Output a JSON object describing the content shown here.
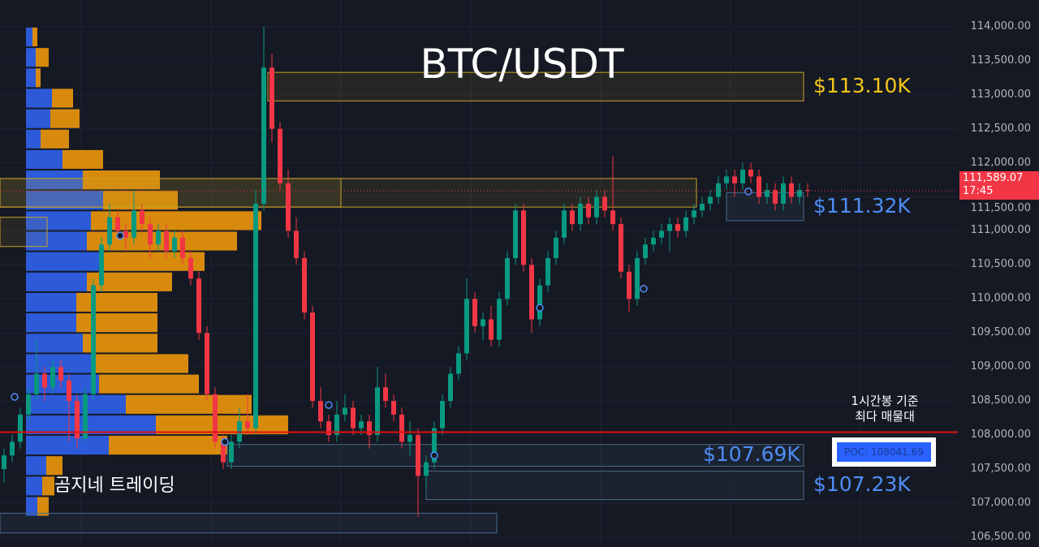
{
  "chart_data": {
    "type": "candlestick",
    "title": "BTC/USDT",
    "ylim": [
      106400,
      114400
    ],
    "y_ticks": [
      "114,000.00",
      "113,500.00",
      "113,000.00",
      "112,500.00",
      "112,000.00",
      "111,500.00",
      "111,000.00",
      "110,500.00",
      "110,000.00",
      "109,500.00",
      "109,000.00",
      "108,500.00",
      "108,000.00",
      "107,500.00",
      "107,000.00",
      "106,500.00"
    ],
    "y_tick_values": [
      114000,
      113500,
      113000,
      112500,
      112000,
      111500,
      111000,
      110500,
      110000,
      109500,
      109000,
      108500,
      108000,
      107500,
      107000,
      106500
    ],
    "grid": true,
    "colors": {
      "up": "#089981",
      "down": "#f23645",
      "background": "#151924",
      "profile_up": "#2c5ad8",
      "profile_down": "#d88a0c",
      "zone_yellow": "#c9a227",
      "zone_blue": "#4a6a8a",
      "poc_line": "#e01010"
    },
    "candles_ohlc": [
      [
        107500,
        107800,
        107300,
        107700
      ],
      [
        107700,
        108000,
        107600,
        107900
      ],
      [
        107900,
        108400,
        107800,
        108300
      ],
      [
        108300,
        108700,
        108200,
        108600
      ],
      [
        108600,
        109400,
        108500,
        108900
      ],
      [
        108900,
        109000,
        108500,
        108700
      ],
      [
        108700,
        109100,
        108600,
        109000
      ],
      [
        109000,
        109100,
        108700,
        108800
      ],
      [
        108800,
        108900,
        107900,
        108500
      ],
      [
        108500,
        108600,
        107800,
        107950
      ],
      [
        107950,
        108700,
        107900,
        108600
      ],
      [
        108600,
        110300,
        108500,
        110200
      ],
      [
        110200,
        110900,
        110100,
        110800
      ],
      [
        110800,
        111400,
        110700,
        111200
      ],
      [
        111200,
        111300,
        110900,
        111000
      ],
      [
        111000,
        111100,
        110700,
        110900
      ],
      [
        110900,
        111600,
        110800,
        111300
      ],
      [
        111300,
        111400,
        111000,
        111100
      ],
      [
        111100,
        111200,
        110600,
        110800
      ],
      [
        110800,
        111100,
        110700,
        111000
      ],
      [
        111000,
        111100,
        110600,
        110700
      ],
      [
        110700,
        111000,
        110600,
        110900
      ],
      [
        110900,
        111000,
        110500,
        110600
      ],
      [
        110600,
        110700,
        110200,
        110300
      ],
      [
        110300,
        110400,
        109400,
        109500
      ],
      [
        109500,
        109600,
        108500,
        108600
      ],
      [
        108600,
        108700,
        107800,
        107900
      ],
      [
        107900,
        108000,
        107500,
        107600
      ],
      [
        107600,
        108000,
        107500,
        107900
      ],
      [
        107900,
        108400,
        107800,
        108200
      ],
      [
        108200,
        108600,
        108000,
        108100
      ],
      [
        108100,
        111600,
        108000,
        111400
      ],
      [
        111400,
        114000,
        111300,
        113400
      ],
      [
        113400,
        113600,
        112300,
        112500
      ],
      [
        112500,
        112600,
        111600,
        111700
      ],
      [
        111700,
        111900,
        110900,
        111000
      ],
      [
        111000,
        111200,
        110500,
        110600
      ],
      [
        110600,
        110700,
        109700,
        109800
      ],
      [
        109800,
        109900,
        108400,
        108500
      ],
      [
        108500,
        108700,
        108100,
        108200
      ],
      [
        108200,
        108300,
        107900,
        108000
      ],
      [
        108000,
        108500,
        107900,
        108300
      ],
      [
        108300,
        108600,
        108200,
        108400
      ],
      [
        108400,
        108500,
        108000,
        108100
      ],
      [
        108100,
        108300,
        108000,
        108200
      ],
      [
        108200,
        108300,
        107800,
        108000
      ],
      [
        108000,
        109000,
        107900,
        108700
      ],
      [
        108700,
        108900,
        108400,
        108500
      ],
      [
        108500,
        108600,
        108200,
        108300
      ],
      [
        108300,
        108400,
        107800,
        107900
      ],
      [
        107900,
        108200,
        107700,
        108000
      ],
      [
        108000,
        108100,
        106800,
        107400
      ],
      [
        107400,
        107700,
        107200,
        107600
      ],
      [
        107600,
        108200,
        107500,
        108100
      ],
      [
        108100,
        108600,
        108000,
        108500
      ],
      [
        108500,
        109000,
        108400,
        108900
      ],
      [
        108900,
        109300,
        108800,
        109200
      ],
      [
        109200,
        110300,
        109100,
        110000
      ],
      [
        110000,
        110100,
        109500,
        109600
      ],
      [
        109600,
        109800,
        109400,
        109700
      ],
      [
        109700,
        109900,
        109300,
        109400
      ],
      [
        109400,
        110100,
        109300,
        110000
      ],
      [
        110000,
        110700,
        109900,
        110600
      ],
      [
        110600,
        111400,
        110500,
        111300
      ],
      [
        111300,
        111400,
        110400,
        110500
      ],
      [
        110500,
        110600,
        109500,
        109700
      ],
      [
        109700,
        110300,
        109600,
        110200
      ],
      [
        110200,
        110700,
        110100,
        110600
      ],
      [
        110600,
        111000,
        110500,
        110900
      ],
      [
        110900,
        111400,
        110800,
        111300
      ],
      [
        111300,
        111400,
        111000,
        111100
      ],
      [
        111100,
        111500,
        111000,
        111400
      ],
      [
        111400,
        111500,
        111100,
        111200
      ],
      [
        111200,
        111600,
        111100,
        111500
      ],
      [
        111500,
        111600,
        111200,
        111300
      ],
      [
        111300,
        112100,
        111000,
        111100
      ],
      [
        111100,
        111200,
        110300,
        110400
      ],
      [
        110400,
        110500,
        109800,
        110000
      ],
      [
        110000,
        110700,
        109900,
        110600
      ],
      [
        110600,
        110900,
        110500,
        110800
      ],
      [
        110800,
        111000,
        110700,
        110900
      ],
      [
        110900,
        111100,
        110800,
        111000
      ],
      [
        111000,
        111200,
        110700,
        111100
      ],
      [
        111100,
        111200,
        110900,
        111000
      ],
      [
        111000,
        111300,
        110900,
        111200
      ],
      [
        111200,
        111400,
        111100,
        111300
      ],
      [
        111300,
        111500,
        111200,
        111400
      ],
      [
        111400,
        111600,
        111300,
        111500
      ],
      [
        111500,
        111800,
        111400,
        111700
      ],
      [
        111700,
        111900,
        111600,
        111800
      ],
      [
        111800,
        111900,
        111500,
        111700
      ],
      [
        111700,
        112000,
        111600,
        111900
      ],
      [
        111900,
        112000,
        111700,
        111800
      ],
      [
        111800,
        111900,
        111400,
        111500
      ],
      [
        111500,
        111700,
        111400,
        111600
      ],
      [
        111600,
        111700,
        111300,
        111400
      ],
      [
        111400,
        111800,
        111300,
        111700
      ],
      [
        111700,
        111800,
        111400,
        111500
      ],
      [
        111500,
        111700,
        111400,
        111600
      ],
      [
        111600,
        111700,
        111500,
        111589.07
      ]
    ],
    "volume_profile": {
      "top_price": 114000,
      "row_step": 300,
      "rows_up_down": [
        [
          8,
          6
        ],
        [
          12,
          16
        ],
        [
          12,
          6
        ],
        [
          32,
          26
        ],
        [
          30,
          36
        ],
        [
          18,
          35
        ],
        [
          45,
          50
        ],
        [
          70,
          95
        ],
        [
          95,
          92
        ],
        [
          80,
          210
        ],
        [
          75,
          185
        ],
        [
          95,
          125
        ],
        [
          75,
          105
        ],
        [
          62,
          100
        ],
        [
          62,
          100
        ],
        [
          70,
          92
        ],
        [
          85,
          115
        ],
        [
          90,
          123
        ],
        [
          123,
          155
        ],
        [
          160,
          163
        ],
        [
          102,
          146
        ],
        [
          25,
          20
        ],
        [
          20,
          15
        ],
        [
          14,
          14
        ]
      ]
    },
    "zones": [
      {
        "from": 33,
        "to": 99,
        "high": 113330,
        "low": 112910,
        "color": "yellow",
        "label": "$113.10K",
        "label_color": "#f5c518"
      },
      {
        "from": 0,
        "to": 85.8,
        "high": 111770,
        "low": 111350,
        "color": "yellow"
      },
      {
        "from": 0,
        "to": 42,
        "high": 111770,
        "low": 111350,
        "color": "yellow"
      },
      {
        "from": 89.5,
        "to": 99,
        "high": 111560,
        "low": 111150,
        "color": "blue",
        "label": "$111.32K",
        "label_color": "#4d8df6"
      },
      {
        "from": 0,
        "to": 5.8,
        "high": 111200,
        "low": 110770,
        "color": "yellow"
      },
      {
        "from": 28,
        "to": 99,
        "high": 107860,
        "low": 107540,
        "color": "blue",
        "label": "$107.69K",
        "label_color": "#4d8df6",
        "label_side": "inside"
      },
      {
        "from": 52.5,
        "to": 99,
        "high": 107470,
        "low": 107050,
        "color": "blue",
        "label": "$107.23K",
        "label_color": "#4d8df6"
      },
      {
        "from": 0,
        "to": 61.2,
        "high": 106850,
        "low": 106560,
        "color": "blue"
      }
    ],
    "markers": [
      {
        "i": 1.3,
        "price": 108560
      },
      {
        "i": 14.3,
        "price": 110930
      },
      {
        "i": 27.2,
        "price": 107900
      },
      {
        "i": 40,
        "price": 108440
      },
      {
        "i": 53,
        "price": 107700
      },
      {
        "i": 66,
        "price": 109870
      },
      {
        "i": 78.8,
        "price": 110150
      },
      {
        "i": 91.7,
        "price": 111580
      }
    ],
    "poc_price": 108041.69,
    "last_price": "111,589.07",
    "last_price_value": 111589.07,
    "countdown": "17:45"
  },
  "annotations": {
    "poc_note_line1": "1시간봉 기준",
    "poc_note_line2": "최다 매물대",
    "poc_label": "POC: 108041.69",
    "watermark": "곰지네 트레이딩"
  }
}
